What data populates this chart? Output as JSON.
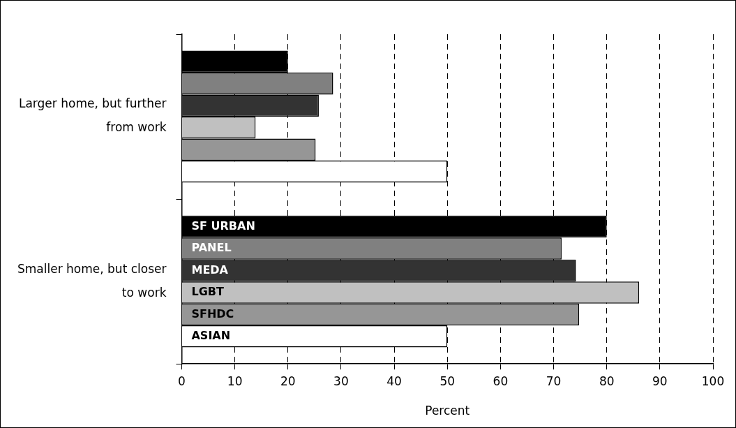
{
  "chart_data": {
    "type": "bar",
    "orientation": "horizontal",
    "xlabel": "Percent",
    "categories": [
      "Larger home, but further from work",
      "Smaller home, but closer to work"
    ],
    "series": [
      {
        "name": "SF URBAN",
        "color": "#000000",
        "values": [
          20,
          80
        ]
      },
      {
        "name": "PANEL",
        "color": "#808080",
        "values": [
          28.5,
          71.5
        ]
      },
      {
        "name": "MEDA",
        "color": "#333333",
        "values": [
          25.8,
          74.2
        ]
      },
      {
        "name": "LGBT",
        "color": "#c0c0c0",
        "values": [
          13.9,
          86.1
        ]
      },
      {
        "name": "SFHDC",
        "color": "#969696",
        "values": [
          25.2,
          74.8
        ]
      },
      {
        "name": "ASIAN",
        "color": "#ffffff",
        "values": [
          50,
          50
        ]
      }
    ],
    "xlim": [
      0,
      100
    ],
    "xticks": [
      0,
      10,
      20,
      30,
      40,
      50,
      60,
      70,
      80,
      90,
      100
    ],
    "grid": "x",
    "legend": false
  }
}
